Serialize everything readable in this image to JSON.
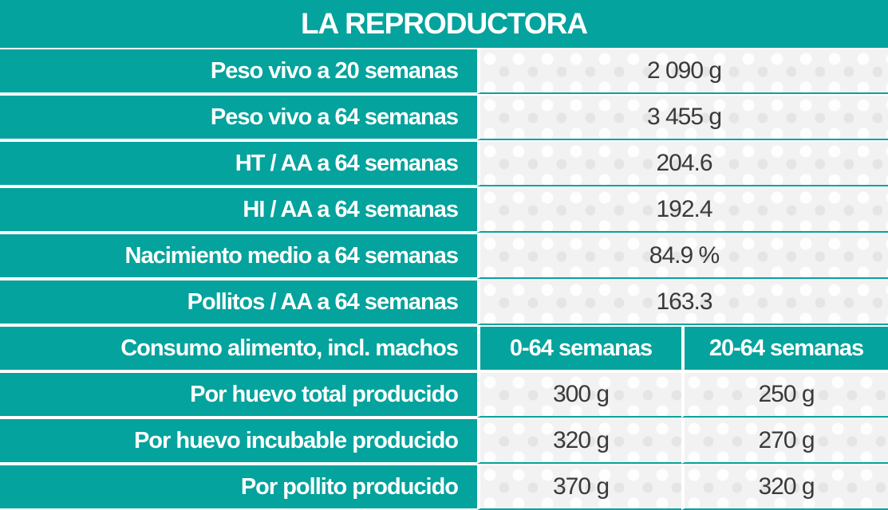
{
  "title": "LA REPRODUCTORA",
  "rows": [
    {
      "label": "Peso vivo a 20 semanas",
      "value": "2 090 g"
    },
    {
      "label": "Peso vivo a 64 semanas",
      "value": "3 455 g"
    },
    {
      "label": "HT / AA a 64 semanas",
      "value": "204.6"
    },
    {
      "label": "HI / AA a 64 semanas",
      "value": "192.4"
    },
    {
      "label": "Nacimiento medio a 64 semanas",
      "value": "84.9 %"
    },
    {
      "label": "Pollitos / AA a 64 semanas",
      "value": "163.3"
    }
  ],
  "feed": {
    "label": "Consumo alimento, incl. machos",
    "col1": "0-64 semanas",
    "col2": "20-64 semanas",
    "rows": [
      {
        "label": "Por huevo total producido",
        "v1": "300 g",
        "v2": "250 g"
      },
      {
        "label": "Por huevo incubable producido",
        "v1": "320 g",
        "v2": "270 g"
      },
      {
        "label": "Por pollito producido",
        "v1": "370 g",
        "v2": "320 g"
      }
    ]
  },
  "colors": {
    "accent": "#04a39d",
    "value_bg": "#f2f2f2",
    "value_text": "#3a3a3a"
  }
}
